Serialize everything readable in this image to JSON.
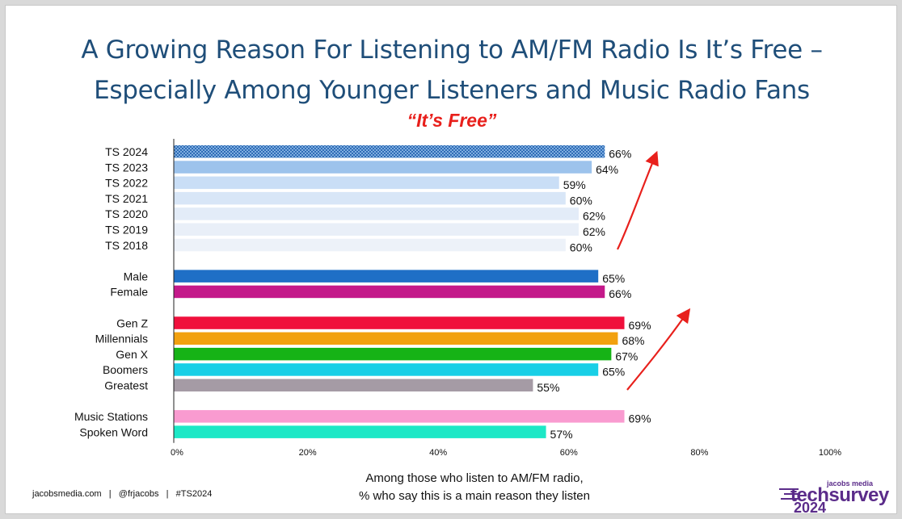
{
  "title_lines": [
    "A Growing Reason For Listening to AM/FM Radio Is It’s Free –",
    "Especially Among Younger Listeners and Music Radio Fans"
  ],
  "subtitle": "“It’s Free”",
  "x_axis_label_lines": [
    "Among those who listen to AM/FM radio,",
    "% who say this is a main reason they listen"
  ],
  "footer": "jacobsmedia.com   |   @frjacobs   |   #TS2024",
  "logo": {
    "small": "jacobs media",
    "main": "techsurvey",
    "year": "2024",
    "color": "#5b2c8a"
  },
  "chart_data": {
    "type": "bar",
    "orientation": "horizontal",
    "xlim": [
      0,
      100
    ],
    "x_ticks": [
      "0%",
      "20%",
      "40%",
      "60%",
      "80%",
      "100%"
    ],
    "grid": false,
    "value_suffix": "%",
    "groups": [
      {
        "categories": [
          "TS 2024",
          "TS 2023",
          "TS 2022",
          "TS 2021",
          "TS 2020",
          "TS 2019",
          "TS 2018"
        ],
        "values": [
          66,
          64,
          59,
          60,
          62,
          62,
          60
        ],
        "colors": [
          "#2e6bb5",
          "#9dc3ec",
          "#c9def6",
          "#d8e6f7",
          "#e3ecf8",
          "#e9eff8",
          "#edf2f9"
        ],
        "patterned_first": true
      },
      {
        "categories": [
          "Male",
          "Female"
        ],
        "values": [
          65,
          66
        ],
        "colors": [
          "#1f6fc6",
          "#c4198a"
        ]
      },
      {
        "categories": [
          "Gen Z",
          "Millennials",
          "Gen X",
          "Boomers",
          "Greatest"
        ],
        "values": [
          69,
          68,
          67,
          65,
          55
        ],
        "colors": [
          "#f0103c",
          "#f2a10f",
          "#16b316",
          "#18cfe6",
          "#a59ba5"
        ]
      },
      {
        "categories": [
          "Music Stations",
          "Spoken Word"
        ],
        "values": [
          69,
          57
        ],
        "colors": [
          "#f99bd0",
          "#1de8c6"
        ]
      }
    ],
    "annotations": [
      "trend arrow next to TS bars",
      "trend arrow next to generation bars"
    ],
    "arrow_color": "#e8201c"
  }
}
